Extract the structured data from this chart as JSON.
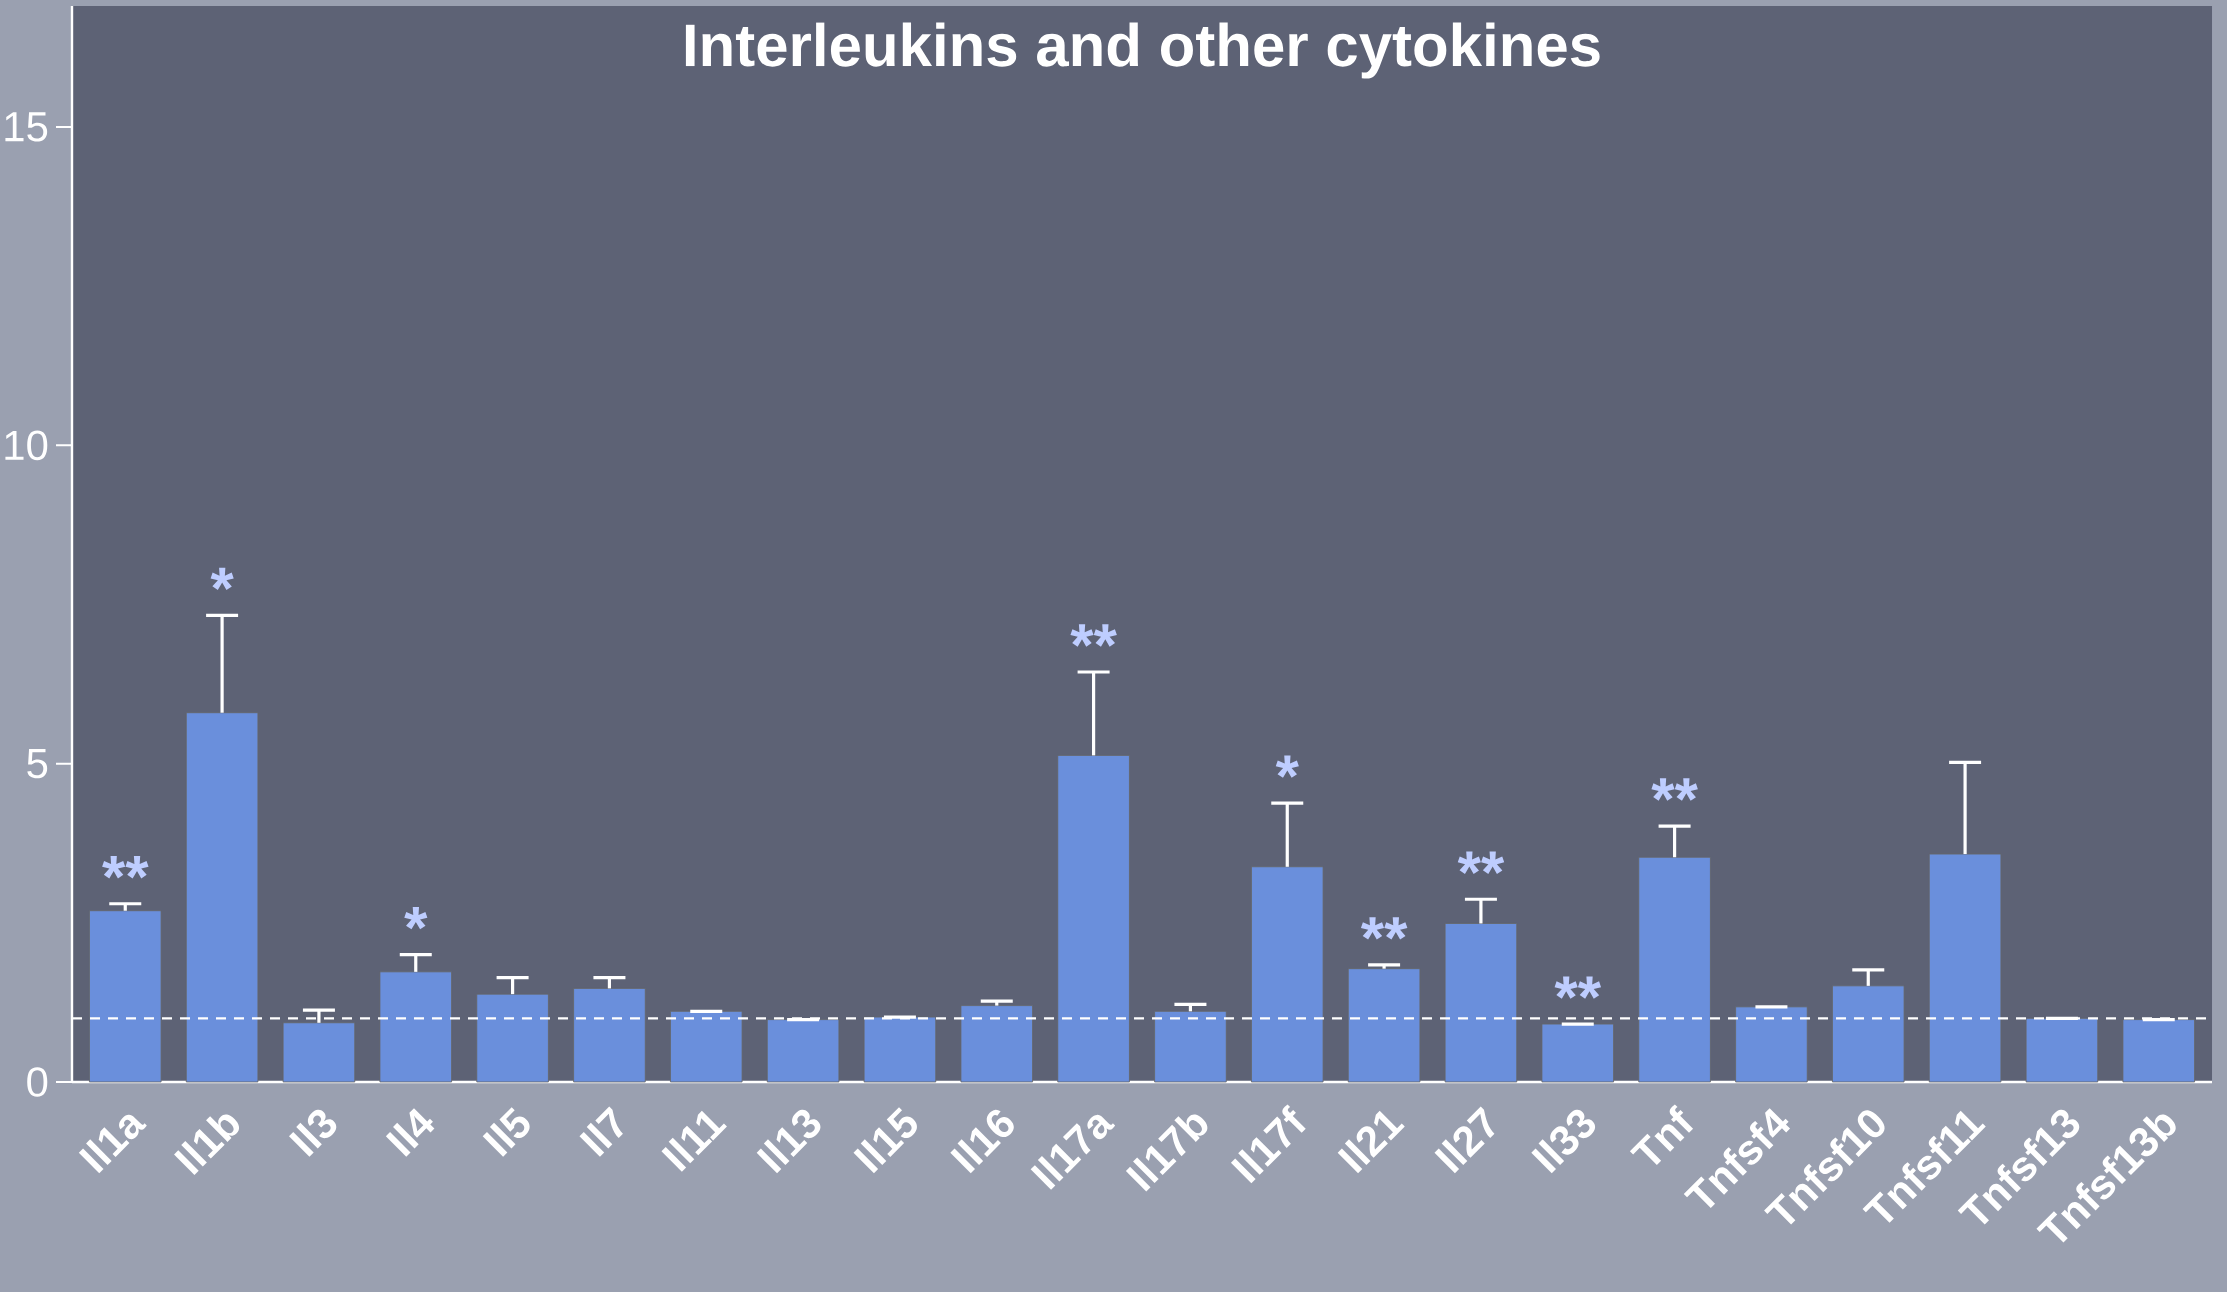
{
  "chart_data": {
    "type": "bar",
    "title": "Interleukins and other cytokines",
    "categories": [
      "Il1a",
      "Il1b",
      "Il3",
      "Il4",
      "Il5",
      "Il7",
      "Il11",
      "Il13",
      "Il15",
      "Il16",
      "Il17a",
      "Il17b",
      "Il17f",
      "Il21",
      "Il27",
      "Il33",
      "Tnf",
      "Tnfsf4",
      "Tnfsf10",
      "Tnfsf11",
      "Tnfsf13",
      "Tnfsf13b"
    ],
    "values": [
      2.69,
      5.8,
      0.93,
      1.73,
      1.38,
      1.47,
      1.11,
      0.98,
      1.02,
      1.2,
      5.13,
      1.11,
      3.38,
      1.78,
      2.49,
      0.91,
      3.53,
      1.18,
      1.51,
      3.58,
      1.0,
      0.98
    ],
    "errors": [
      0.11,
      1.53,
      0.2,
      0.27,
      0.26,
      0.17,
      null,
      null,
      null,
      0.07,
      1.31,
      0.11,
      1.0,
      0.06,
      0.38,
      null,
      0.49,
      null,
      0.25,
      1.44,
      null,
      null
    ],
    "color": "#6a8fdc",
    "ylim": [
      0,
      16.9
    ],
    "yticks": [
      0,
      5,
      10,
      15
    ],
    "ref_lines": [
      {
        "axis": "y",
        "value": 1,
        "color": "#ffffff",
        "line_style": "dashed"
      }
    ],
    "annotations": [
      {
        "text": "**",
        "x": "Il1a",
        "y": 2.8
      },
      {
        "text": "*",
        "x": "Il1b",
        "y": 7.33
      },
      {
        "text": "*",
        "x": "Il4",
        "y": 2.0
      },
      {
        "text": "**",
        "x": "Il17a",
        "y": 6.44
      },
      {
        "text": "*",
        "x": "Il17f",
        "y": 4.38
      },
      {
        "text": "**",
        "x": "Il21",
        "y": 1.84
      },
      {
        "text": "**",
        "x": "Il27",
        "y": 2.87
      },
      {
        "text": "**",
        "x": "Il33",
        "y": 0.91
      },
      {
        "text": "**",
        "x": "Tnf",
        "y": 4.02
      }
    ]
  }
}
